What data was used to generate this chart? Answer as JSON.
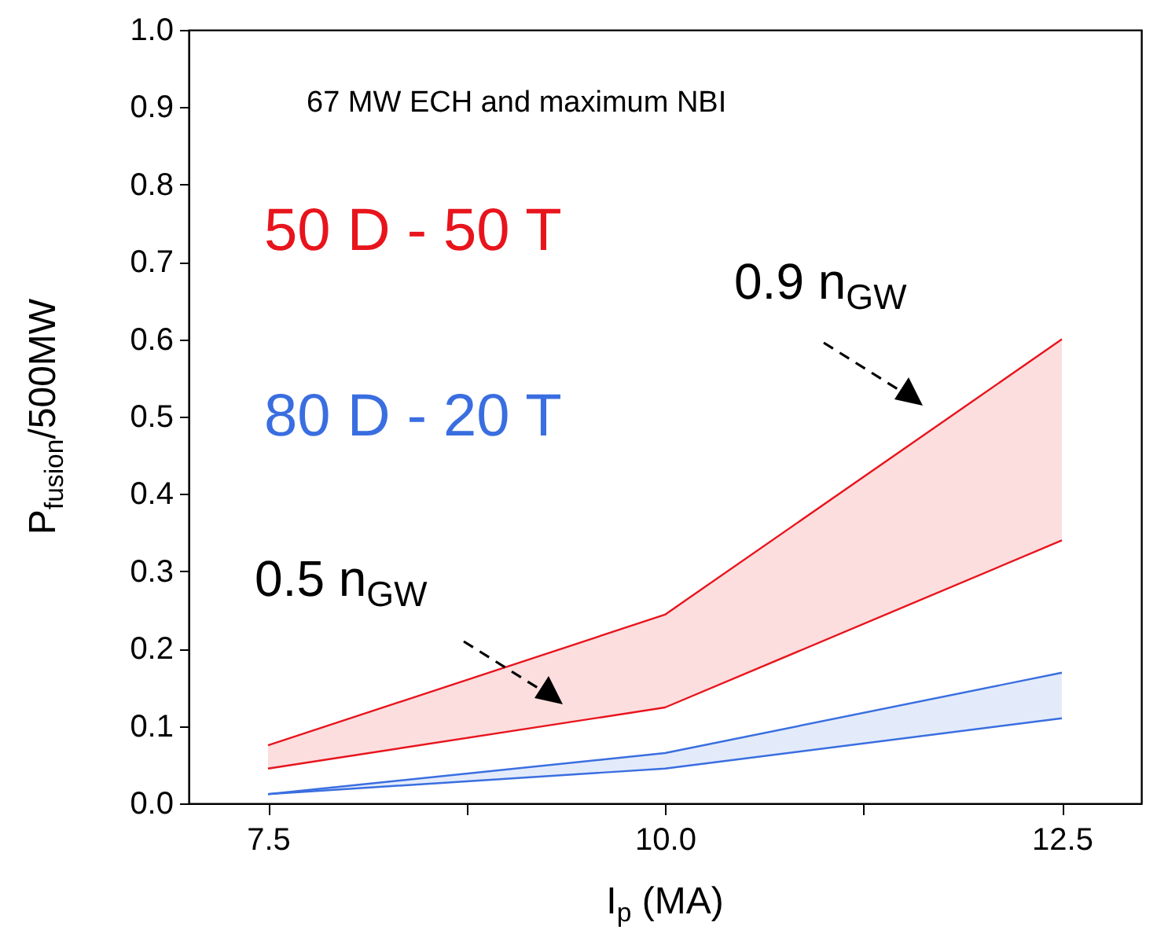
{
  "chart_data": {
    "type": "line",
    "xlabel": "I$_{p}$ (MA)",
    "ylabel": "P$_{fusion}$/500MW",
    "x": [
      7.5,
      10,
      12.5
    ],
    "series": [
      {
        "name": "50 D - 50 T",
        "color": "#e8141c",
        "values": [
          0.075,
          0.244,
          0.6
        ],
        "lower": [
          0.045,
          0.124,
          0.34
        ],
        "upper": [
          0.075,
          0.244,
          0.6
        ]
      },
      {
        "color": "#e8141c",
        "values": [
          0.045,
          0.124,
          0.34
        ]
      },
      {
        "name": "80 D - 20 T",
        "color": "#3a6ee0",
        "values": [
          0.012,
          0.065,
          0.169
        ],
        "lower": [
          0.012,
          0.045,
          0.11
        ],
        "upper": [
          0.012,
          0.065,
          0.169
        ]
      },
      {
        "color": "#3a6ee0",
        "values": [
          0.012,
          0.045,
          0.11
        ]
      }
    ],
    "annotations": [
      "67 MW ECH and maximum NBI",
      "0.9 n$_{GW}$",
      "0.5 n$_{GW}$"
    ],
    "xlim": [
      7,
      13
    ],
    "xticks": [
      7.5,
      {
        "value": 8.75,
        "label": null
      },
      {
        "value": 10,
        "label": "10.0"
      },
      {
        "value": 11.25,
        "label": null
      },
      12.5
    ],
    "ylim": [
      0,
      1
    ],
    "yticks": [
      {
        "value": 0,
        "label": "0.0"
      },
      0.1,
      0.2,
      0.3,
      0.4,
      0.5,
      0.6,
      0.7,
      0.8,
      0.9,
      {
        "value": 1,
        "label": "1.0"
      }
    ],
    "grid": false,
    "legend": false
  }
}
